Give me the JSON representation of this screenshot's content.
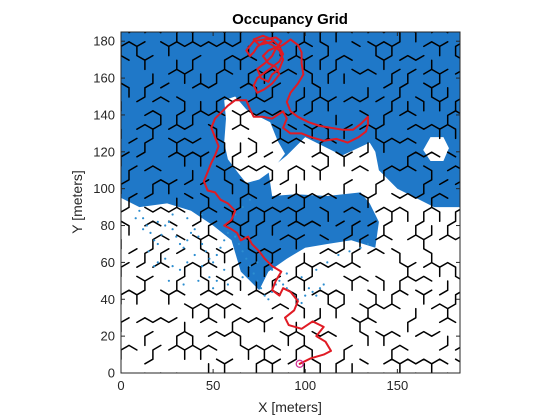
{
  "chart_data": {
    "type": "scatter",
    "title": "Occupancy Grid",
    "xlabel": "X [meters]",
    "ylabel": "Y [meters]",
    "xlim": [
      0,
      184
    ],
    "ylim": [
      0,
      185
    ],
    "xticks": [
      0,
      50,
      100,
      150
    ],
    "yticks": [
      0,
      20,
      40,
      60,
      80,
      100,
      120,
      140,
      160,
      180
    ],
    "grid": false,
    "legend": "none",
    "colors": {
      "occupied": "#1f78c8",
      "scan_points": "#2d8ed0",
      "path": "#e01b24",
      "start_marker": "#d0329a",
      "walls": "#000000",
      "axes": "#262626"
    },
    "occupied_region": [
      [
        0,
        185
      ],
      [
        184,
        185
      ],
      [
        184,
        90
      ],
      [
        170,
        90
      ],
      [
        160,
        95
      ],
      [
        150,
        100
      ],
      [
        140,
        110
      ],
      [
        138,
        120
      ],
      [
        135,
        125
      ],
      [
        120,
        118
      ],
      [
        112,
        122
      ],
      [
        100,
        128
      ],
      [
        90,
        118
      ],
      [
        80,
        110
      ],
      [
        82,
        96
      ],
      [
        95,
        97
      ],
      [
        112,
        96
      ],
      [
        130,
        98
      ],
      [
        135,
        92
      ],
      [
        140,
        82
      ],
      [
        138,
        68
      ],
      [
        125,
        72
      ],
      [
        112,
        70
      ],
      [
        100,
        68
      ],
      [
        90,
        62
      ],
      [
        80,
        55
      ],
      [
        75,
        45
      ],
      [
        65,
        55
      ],
      [
        60,
        72
      ],
      [
        50,
        80
      ],
      [
        38,
        88
      ],
      [
        25,
        92
      ],
      [
        10,
        90
      ],
      [
        0,
        95
      ]
    ],
    "cleared_regions": [
      [
        [
          56,
          148
        ],
        [
          62,
          150
        ],
        [
          68,
          143
        ],
        [
          75,
          139
        ],
        [
          81,
          136
        ],
        [
          85,
          126
        ],
        [
          89,
          119
        ],
        [
          82,
          110
        ],
        [
          75,
          105
        ],
        [
          68,
          103
        ],
        [
          64,
          108
        ],
        [
          58,
          116
        ],
        [
          56,
          125
        ],
        [
          57,
          138
        ]
      ],
      [
        [
          168,
          128
        ],
        [
          175,
          128
        ],
        [
          178,
          122
        ],
        [
          175,
          115
        ],
        [
          168,
          115
        ],
        [
          164,
          121
        ]
      ]
    ],
    "scan_points": [
      [
        10,
        88
      ],
      [
        12,
        84
      ],
      [
        14,
        80
      ],
      [
        16,
        76
      ],
      [
        18,
        72
      ],
      [
        20,
        70
      ],
      [
        22,
        75
      ],
      [
        24,
        80
      ],
      [
        26,
        82
      ],
      [
        28,
        78
      ],
      [
        30,
        74
      ],
      [
        32,
        70
      ],
      [
        34,
        68
      ],
      [
        36,
        72
      ],
      [
        38,
        76
      ],
      [
        40,
        78
      ],
      [
        42,
        74
      ],
      [
        44,
        70
      ],
      [
        46,
        66
      ],
      [
        48,
        62
      ],
      [
        50,
        60
      ],
      [
        52,
        64
      ],
      [
        54,
        68
      ],
      [
        56,
        72
      ],
      [
        58,
        76
      ],
      [
        60,
        78
      ],
      [
        62,
        74
      ],
      [
        64,
        70
      ],
      [
        66,
        66
      ],
      [
        68,
        62
      ],
      [
        70,
        58
      ],
      [
        72,
        54
      ],
      [
        74,
        50
      ],
      [
        76,
        46
      ],
      [
        78,
        42
      ],
      [
        80,
        40
      ],
      [
        82,
        44
      ],
      [
        84,
        48
      ],
      [
        86,
        50
      ],
      [
        88,
        48
      ],
      [
        90,
        46
      ],
      [
        92,
        44
      ],
      [
        94,
        42
      ],
      [
        96,
        40
      ],
      [
        98,
        38
      ],
      [
        100,
        42
      ],
      [
        102,
        46
      ],
      [
        104,
        44
      ],
      [
        106,
        42
      ],
      [
        108,
        46
      ],
      [
        110,
        48
      ],
      [
        20,
        60
      ],
      [
        24,
        62
      ],
      [
        28,
        58
      ],
      [
        32,
        56
      ],
      [
        36,
        60
      ],
      [
        40,
        64
      ],
      [
        44,
        58
      ],
      [
        48,
        52
      ],
      [
        52,
        50
      ],
      [
        56,
        56
      ],
      [
        15,
        66
      ],
      [
        18,
        58
      ],
      [
        26,
        50
      ],
      [
        34,
        48
      ],
      [
        42,
        50
      ],
      [
        50,
        46
      ],
      [
        58,
        48
      ],
      [
        66,
        52
      ],
      [
        74,
        60
      ],
      [
        82,
        56
      ],
      [
        90,
        54
      ],
      [
        98,
        52
      ],
      [
        106,
        56
      ],
      [
        112,
        60
      ],
      [
        118,
        64
      ],
      [
        124,
        66
      ],
      [
        130,
        68
      ],
      [
        134,
        70
      ],
      [
        62,
        86
      ],
      [
        66,
        90
      ],
      [
        70,
        94
      ],
      [
        44,
        86
      ],
      [
        36,
        84
      ],
      [
        28,
        86
      ],
      [
        20,
        82
      ],
      [
        12,
        78
      ],
      [
        8,
        84
      ]
    ],
    "path": [
      [
        97,
        5
      ],
      [
        103,
        8
      ],
      [
        110,
        10
      ],
      [
        114,
        12
      ],
      [
        111,
        17
      ],
      [
        106,
        20
      ],
      [
        110,
        25
      ],
      [
        104,
        28
      ],
      [
        98,
        24
      ],
      [
        91,
        26
      ],
      [
        89,
        30
      ],
      [
        94,
        34
      ],
      [
        96,
        39
      ],
      [
        92,
        44
      ],
      [
        88,
        46
      ],
      [
        86,
        42
      ],
      [
        82,
        45
      ],
      [
        84,
        50
      ],
      [
        87,
        55
      ],
      [
        82,
        58
      ],
      [
        78,
        62
      ],
      [
        75,
        66
      ],
      [
        71,
        70
      ],
      [
        69,
        74
      ],
      [
        65,
        72
      ],
      [
        63,
        76
      ],
      [
        60,
        78
      ],
      [
        56,
        80
      ],
      [
        60,
        83
      ],
      [
        62,
        88
      ],
      [
        58,
        92
      ],
      [
        54,
        94
      ],
      [
        51,
        98
      ],
      [
        47,
        99
      ],
      [
        45,
        104
      ],
      [
        47,
        109
      ],
      [
        49,
        114
      ],
      [
        51,
        118
      ],
      [
        53,
        123
      ],
      [
        51,
        128
      ],
      [
        49,
        133
      ],
      [
        51,
        138
      ],
      [
        55,
        142
      ],
      [
        58,
        145
      ],
      [
        62,
        148
      ],
      [
        68,
        148
      ],
      [
        70,
        143
      ],
      [
        72,
        139
      ],
      [
        77,
        139
      ],
      [
        82,
        138
      ],
      [
        85,
        140
      ],
      [
        88,
        142
      ],
      [
        90,
        138
      ],
      [
        88,
        133
      ],
      [
        92,
        130
      ],
      [
        98,
        130
      ],
      [
        103,
        128
      ],
      [
        110,
        126
      ],
      [
        117,
        127
      ],
      [
        123,
        125
      ],
      [
        129,
        128
      ],
      [
        133,
        131
      ],
      [
        134,
        135
      ],
      [
        134,
        139
      ],
      [
        130,
        135
      ],
      [
        126,
        132
      ],
      [
        120,
        132
      ],
      [
        114,
        133
      ],
      [
        108,
        134
      ],
      [
        102,
        136
      ],
      [
        96,
        139
      ],
      [
        92,
        142
      ],
      [
        90,
        147
      ],
      [
        92,
        152
      ],
      [
        96,
        157
      ],
      [
        99,
        162
      ],
      [
        98,
        168
      ],
      [
        98,
        174
      ],
      [
        96,
        178
      ],
      [
        92,
        181
      ],
      [
        88,
        178
      ],
      [
        84,
        176
      ],
      [
        82,
        172
      ],
      [
        78,
        168
      ],
      [
        74,
        165
      ],
      [
        76,
        160
      ],
      [
        80,
        158
      ],
      [
        82,
        162
      ],
      [
        86,
        165
      ],
      [
        88,
        170
      ],
      [
        86,
        175
      ],
      [
        82,
        178
      ],
      [
        78,
        180
      ],
      [
        74,
        177
      ],
      [
        72,
        174
      ],
      [
        70,
        172
      ],
      [
        68,
        175
      ],
      [
        72,
        180
      ],
      [
        78,
        181
      ],
      [
        84,
        182
      ],
      [
        87,
        180
      ],
      [
        85,
        177
      ],
      [
        80,
        175
      ],
      [
        77,
        172
      ],
      [
        80,
        168
      ],
      [
        84,
        166
      ],
      [
        86,
        162
      ],
      [
        82,
        157
      ],
      [
        78,
        154
      ],
      [
        74,
        152
      ],
      [
        72,
        156
      ],
      [
        74,
        160
      ],
      [
        78,
        163
      ],
      [
        82,
        166
      ],
      [
        86,
        169
      ],
      [
        88,
        173
      ],
      [
        86,
        177
      ],
      [
        82,
        181
      ],
      [
        77,
        183
      ],
      [
        72,
        181
      ],
      [
        75,
        178
      ],
      [
        79,
        179
      ],
      [
        83,
        180
      ]
    ],
    "start_point": [
      97,
      5
    ]
  }
}
